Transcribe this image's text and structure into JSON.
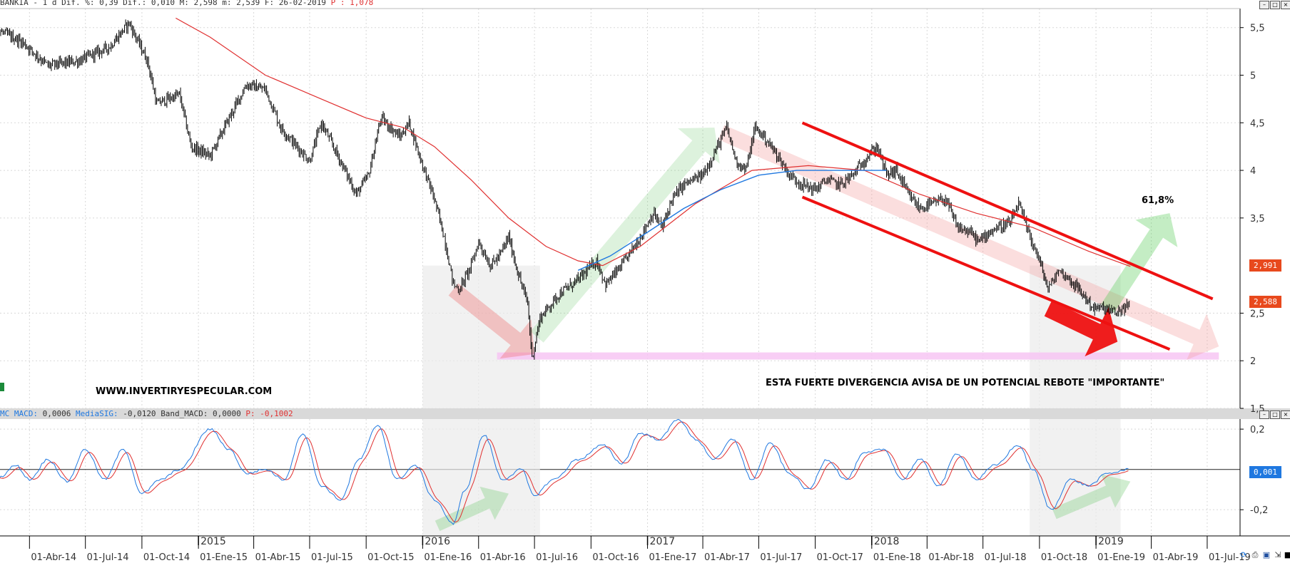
{
  "header": {
    "price_line": "BANKIA -  1 d Dif. %: 0,39 Dif.: 0,010 M: 2,598 m: 2,539 F: 26-02-2019",
    "p_value": "P : 1,078"
  },
  "macd_header": {
    "mc_label": "MC MACD:",
    "mc_value": " 0,0006",
    "sig_label": "MediaSIG:",
    "sig_value": " -0,0120",
    "band_label": "Band_MACD:",
    "band_value": " 0,0000",
    "p_label": "P: -0,1002"
  },
  "annotations": {
    "website": "WWW.INVERTIRYESPECULAR.COM",
    "divergence_note": "ESTA FUERTE DIVERGENCIA AVISA DE UN POTENCIAL REBOTE \"IMPORTANTE\"",
    "fib_label": "61,8%"
  },
  "badges": {
    "ma_value": "2,991",
    "last_price": "2,588",
    "macd_last": "0,001"
  },
  "colors": {
    "price": "#000000",
    "ma_red": "#e03030",
    "ma_blue": "#1f78e0",
    "channel": "#ee1111",
    "support": "#f7c6f3",
    "badge": "#e8491d",
    "macd_badge": "#1f78e0",
    "grid": "#d8d8d8"
  },
  "chart_data": [
    {
      "type": "line",
      "name": "price-panel",
      "title": "BANKIA",
      "y_ticks": [
        "5,5",
        "5",
        "4,5",
        "4",
        "3,5",
        "2,5",
        "2",
        "1,5"
      ],
      "ylim": [
        1.5,
        5.7
      ],
      "x_year_labels": [
        "2015",
        "2016",
        "2017",
        "2018",
        "2019"
      ],
      "x_date_labels": [
        "01-Abr-14",
        "01-Jul-14",
        "01-Oct-14",
        "01-Ene-15",
        "01-Abr-15",
        "01-Jul-15",
        "01-Oct-15",
        "01-Ene-16",
        "01-Abr-16",
        "01-Jul-16",
        "01-Oct-16",
        "01-Ene-17",
        "01-Abr-17",
        "01-Jul-17",
        "01-Oct-17",
        "01-Ene-18",
        "01-Abr-18",
        "01-Jul-18",
        "01-Oct-18",
        "01-Ene-19",
        "01-Abr-19",
        "01-Jul-19"
      ],
      "x_date_values": [
        "2014-04-01",
        "2014-07-01",
        "2014-10-01",
        "2015-01-01",
        "2015-04-01",
        "2015-07-01",
        "2015-10-01",
        "2016-01-01",
        "2016-04-01",
        "2016-07-01",
        "2016-10-01",
        "2017-01-01",
        "2017-04-01",
        "2017-07-01",
        "2017-10-01",
        "2018-01-01",
        "2018-04-01",
        "2018-07-01",
        "2018-10-01",
        "2019-01-01",
        "2019-04-01",
        "2019-07-01"
      ],
      "price_keypoints": [
        [
          "2014-01-01",
          5.58
        ],
        [
          "2014-02-15",
          5.45
        ],
        [
          "2014-03-20",
          5.35
        ],
        [
          "2014-05-01",
          5.1
        ],
        [
          "2014-06-20",
          5.15
        ],
        [
          "2014-08-10",
          5.3
        ],
        [
          "2014-09-10",
          5.55
        ],
        [
          "2014-10-10",
          5.15
        ],
        [
          "2014-10-25",
          4.7
        ],
        [
          "2014-12-01",
          4.8
        ],
        [
          "2014-12-20",
          4.25
        ],
        [
          "2015-01-20",
          4.15
        ],
        [
          "2015-02-20",
          4.55
        ],
        [
          "2015-03-20",
          4.9
        ],
        [
          "2015-04-20",
          4.85
        ],
        [
          "2015-05-15",
          4.45
        ],
        [
          "2015-06-10",
          4.25
        ],
        [
          "2015-07-01",
          4.1
        ],
        [
          "2015-07-20",
          4.5
        ],
        [
          "2015-08-20",
          4.1
        ],
        [
          "2015-09-15",
          3.75
        ],
        [
          "2015-10-05",
          3.95
        ],
        [
          "2015-10-25",
          4.55
        ],
        [
          "2015-11-25",
          4.35
        ],
        [
          "2015-12-10",
          4.5
        ],
        [
          "2016-01-01",
          4.05
        ],
        [
          "2016-01-20",
          3.7
        ],
        [
          "2016-02-05",
          3.3
        ],
        [
          "2016-02-20",
          2.8
        ],
        [
          "2016-03-01",
          2.75
        ],
        [
          "2016-03-20",
          3.0
        ],
        [
          "2016-04-01",
          3.25
        ],
        [
          "2016-04-20",
          3.0
        ],
        [
          "2016-05-05",
          3.1
        ],
        [
          "2016-05-20",
          3.3
        ],
        [
          "2016-06-05",
          2.9
        ],
        [
          "2016-06-20",
          2.6
        ],
        [
          "2016-06-27",
          2.03
        ],
        [
          "2016-07-10",
          2.45
        ],
        [
          "2016-08-10",
          2.7
        ],
        [
          "2016-09-10",
          2.85
        ],
        [
          "2016-10-10",
          3.05
        ],
        [
          "2016-10-25",
          2.8
        ],
        [
          "2016-11-20",
          3.0
        ],
        [
          "2016-12-20",
          3.3
        ],
        [
          "2017-01-10",
          3.55
        ],
        [
          "2017-01-25",
          3.4
        ],
        [
          "2017-02-10",
          3.7
        ],
        [
          "2017-03-01",
          3.85
        ],
        [
          "2017-04-01",
          3.95
        ],
        [
          "2017-04-25",
          4.25
        ],
        [
          "2017-05-10",
          4.45
        ],
        [
          "2017-05-25",
          4.1
        ],
        [
          "2017-06-10",
          4.0
        ],
        [
          "2017-06-25",
          4.45
        ],
        [
          "2017-07-10",
          4.35
        ],
        [
          "2017-08-01",
          4.15
        ],
        [
          "2017-08-20",
          3.95
        ],
        [
          "2017-09-10",
          3.85
        ],
        [
          "2017-10-01",
          3.8
        ],
        [
          "2017-10-20",
          3.9
        ],
        [
          "2017-11-10",
          3.85
        ],
        [
          "2017-12-01",
          3.95
        ],
        [
          "2017-12-25",
          4.15
        ],
        [
          "2018-01-10",
          4.25
        ],
        [
          "2018-01-25",
          3.95
        ],
        [
          "2018-02-10",
          4.0
        ],
        [
          "2018-03-01",
          3.75
        ],
        [
          "2018-03-20",
          3.6
        ],
        [
          "2018-04-10",
          3.65
        ],
        [
          "2018-05-01",
          3.7
        ],
        [
          "2018-05-20",
          3.4
        ],
        [
          "2018-06-10",
          3.35
        ],
        [
          "2018-06-25",
          3.25
        ],
        [
          "2018-07-10",
          3.35
        ],
        [
          "2018-07-25",
          3.4
        ],
        [
          "2018-08-15",
          3.45
        ],
        [
          "2018-08-28",
          3.65
        ],
        [
          "2018-09-10",
          3.4
        ],
        [
          "2018-10-01",
          3.05
        ],
        [
          "2018-10-15",
          2.75
        ],
        [
          "2018-11-01",
          2.95
        ],
        [
          "2018-11-20",
          2.85
        ],
        [
          "2018-12-10",
          2.7
        ],
        [
          "2018-12-28",
          2.55
        ],
        [
          "2019-01-15",
          2.55
        ],
        [
          "2019-02-01",
          2.5
        ],
        [
          "2019-02-26",
          2.588
        ]
      ],
      "ma_red_keypoints": [
        [
          "2014-11-25",
          5.6
        ],
        [
          "2015-01-20",
          5.4
        ],
        [
          "2015-04-20",
          5.0
        ],
        [
          "2015-07-20",
          4.75
        ],
        [
          "2015-10-01",
          4.55
        ],
        [
          "2015-12-01",
          4.45
        ],
        [
          "2016-01-20",
          4.25
        ],
        [
          "2016-03-20",
          3.9
        ],
        [
          "2016-05-20",
          3.5
        ],
        [
          "2016-07-20",
          3.2
        ],
        [
          "2016-09-10",
          3.05
        ],
        [
          "2016-10-20",
          3.0
        ],
        [
          "2016-12-20",
          3.2
        ],
        [
          "2017-03-20",
          3.65
        ],
        [
          "2017-06-20",
          4.0
        ],
        [
          "2017-09-20",
          4.05
        ],
        [
          "2017-12-20",
          4.0
        ],
        [
          "2018-03-20",
          3.75
        ],
        [
          "2018-06-20",
          3.55
        ],
        [
          "2018-09-20",
          3.4
        ],
        [
          "2018-12-20",
          3.15
        ],
        [
          "2019-02-26",
          2.991
        ]
      ],
      "ma_blue_keypoints": [
        [
          "2016-09-10",
          2.95
        ],
        [
          "2016-11-01",
          3.1
        ],
        [
          "2017-01-01",
          3.35
        ],
        [
          "2017-03-01",
          3.6
        ],
        [
          "2017-05-01",
          3.8
        ],
        [
          "2017-07-01",
          3.95
        ],
        [
          "2017-09-01",
          4.0
        ],
        [
          "2017-11-01",
          4.0
        ],
        [
          "2018-01-01",
          4.0
        ],
        [
          "2018-01-25",
          4.0
        ]
      ],
      "support_level": 2.05,
      "channel_upper": [
        [
          "2017-09-10",
          4.5
        ],
        [
          "2019-07-10",
          2.65
        ]
      ],
      "channel_lower": [
        [
          "2017-09-10",
          3.72
        ],
        [
          "2019-05-01",
          2.12
        ]
      ],
      "last_value": 2.588,
      "ma_last_value": 2.991
    },
    {
      "type": "line",
      "name": "macd-panel",
      "title": "MACD",
      "y_ticks": [
        "0,2",
        "-0,2"
      ],
      "ylim": [
        -0.33,
        0.25
      ],
      "macd_keypoints": [
        [
          "2014-01-01",
          0.0
        ],
        [
          "2014-02-10",
          -0.04
        ],
        [
          "2014-03-10",
          0.02
        ],
        [
          "2014-04-01",
          -0.05
        ],
        [
          "2014-05-01",
          0.05
        ],
        [
          "2014-06-01",
          -0.06
        ],
        [
          "2014-07-01",
          0.1
        ],
        [
          "2014-08-01",
          -0.05
        ],
        [
          "2014-09-01",
          0.1
        ],
        [
          "2014-10-01",
          -0.12
        ],
        [
          "2014-11-01",
          -0.05
        ],
        [
          "2014-12-01",
          0.0
        ],
        [
          "2015-01-20",
          0.2
        ],
        [
          "2015-02-20",
          0.1
        ],
        [
          "2015-03-20",
          -0.02
        ],
        [
          "2015-04-20",
          0.0
        ],
        [
          "2015-05-20",
          -0.05
        ],
        [
          "2015-06-20",
          0.18
        ],
        [
          "2015-07-20",
          -0.08
        ],
        [
          "2015-08-20",
          -0.15
        ],
        [
          "2015-09-20",
          0.05
        ],
        [
          "2015-10-20",
          0.22
        ],
        [
          "2015-11-20",
          -0.05
        ],
        [
          "2015-12-20",
          0.02
        ],
        [
          "2016-01-20",
          -0.15
        ],
        [
          "2016-02-20",
          -0.27
        ],
        [
          "2016-03-10",
          -0.1
        ],
        [
          "2016-04-10",
          0.17
        ],
        [
          "2016-05-10",
          -0.05
        ],
        [
          "2016-06-10",
          0.0
        ],
        [
          "2016-06-30",
          -0.13
        ],
        [
          "2016-08-01",
          -0.05
        ],
        [
          "2016-09-10",
          0.05
        ],
        [
          "2016-10-20",
          0.12
        ],
        [
          "2016-11-20",
          0.03
        ],
        [
          "2016-12-20",
          0.18
        ],
        [
          "2017-01-20",
          0.15
        ],
        [
          "2017-02-20",
          0.25
        ],
        [
          "2017-03-20",
          0.15
        ],
        [
          "2017-04-20",
          0.05
        ],
        [
          "2017-05-20",
          0.15
        ],
        [
          "2017-06-20",
          -0.05
        ],
        [
          "2017-07-20",
          0.13
        ],
        [
          "2017-08-20",
          -0.02
        ],
        [
          "2017-09-20",
          -0.1
        ],
        [
          "2017-10-20",
          0.05
        ],
        [
          "2017-11-20",
          -0.05
        ],
        [
          "2017-12-20",
          0.08
        ],
        [
          "2018-01-20",
          0.1
        ],
        [
          "2018-02-20",
          -0.05
        ],
        [
          "2018-03-20",
          0.05
        ],
        [
          "2018-04-20",
          -0.08
        ],
        [
          "2018-05-20",
          0.08
        ],
        [
          "2018-06-20",
          -0.05
        ],
        [
          "2018-07-20",
          0.02
        ],
        [
          "2018-08-28",
          0.12
        ],
        [
          "2018-09-20",
          0.0
        ],
        [
          "2018-10-20",
          -0.2
        ],
        [
          "2018-11-20",
          -0.05
        ],
        [
          "2018-12-20",
          -0.08
        ],
        [
          "2019-01-20",
          -0.02
        ],
        [
          "2019-02-26",
          0.001
        ]
      ],
      "last_value": 0.001
    }
  ]
}
